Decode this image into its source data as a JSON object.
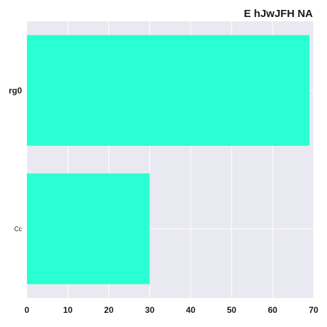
{
  "chart_data": {
    "type": "bar",
    "orientation": "horizontal",
    "title": "E hJwJFH NA",
    "xlabel": "",
    "ylabel": "",
    "categories": [
      "rg0",
      "Cc"
    ],
    "values": [
      69,
      30
    ],
    "xlim": [
      0,
      70
    ],
    "xticks": [
      "0",
      "10",
      "20",
      "30",
      "40",
      "50",
      "60",
      "70"
    ],
    "grid": true,
    "colors": {
      "bar": "#2affd3",
      "plot_background": "#e9e9f1",
      "grid": "#ffffff"
    }
  }
}
